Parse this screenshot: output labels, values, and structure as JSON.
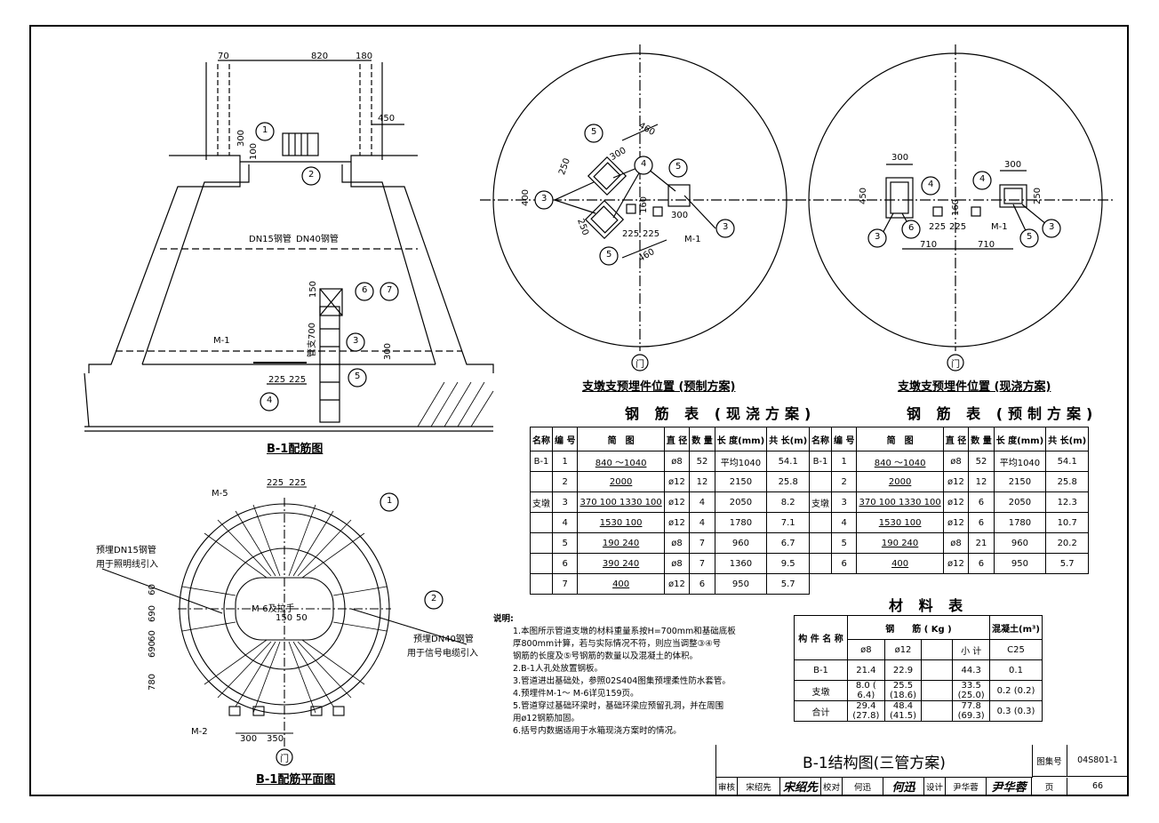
{
  "drawing": {
    "elevation": {
      "title": "B-1配筋图",
      "dims": {
        "d70": "70",
        "d820": "820",
        "d180": "180",
        "d450": "450",
        "d300a": "300",
        "d100": "100",
        "d150": "150",
        "d300b": "300",
        "d225a": "225",
        "d225b": "225"
      },
      "labels": {
        "dn15": "DN15钢管",
        "dn40": "DN40钢管",
        "m1": "M-1",
        "h700": "管支700"
      },
      "bubbles": [
        "1",
        "2",
        "6",
        "7",
        "3",
        "5",
        "4"
      ]
    },
    "plan": {
      "title": "B-1配筋平面图",
      "dims": {
        "d225a": "225",
        "d225b": "225",
        "d60a": "60",
        "d690a": "690",
        "d60b": "60",
        "d690b": "690",
        "d780": "780",
        "d300": "300",
        "d350": "350",
        "d150": "150",
        "d50": "50"
      },
      "labels": {
        "m5": "M-5",
        "m2": "M-2",
        "m6": "M-6及拉手",
        "left1": "预埋DN15钢管",
        "left2": "用于照明线引入",
        "right1": "预埋DN40钢管",
        "right2": "用于信号电缆引入"
      },
      "bubbles": [
        "1",
        "2"
      ],
      "door": "门"
    },
    "circle_left": {
      "title": "支墩支预埋件位置 (预制方案)",
      "dims": {
        "d460a": "460",
        "d300": "300",
        "d250a": "250",
        "d400": "400",
        "d250b": "250",
        "d160": "160",
        "d225a": "225",
        "d225b": "225",
        "d300b": "300",
        "d460b": "460"
      },
      "labels": {
        "m1": "M-1"
      },
      "bubbles": [
        "5",
        "3",
        "4",
        "5",
        "3",
        "5"
      ],
      "door": "门"
    },
    "circle_right": {
      "title": "支墩支预埋件位置 (现浇方案)",
      "dims": {
        "d300a": "300",
        "d450": "450",
        "d300b": "300",
        "d250": "250",
        "d160": "160",
        "d225a": "225",
        "d225b": "225",
        "d710a": "710",
        "d710b": "710"
      },
      "labels": {
        "m1": "M-1"
      },
      "bubbles": [
        "4",
        "3",
        "6",
        "4",
        "5",
        "3"
      ],
      "door": "门"
    }
  },
  "table_cast": {
    "title": "钢 筋 表 (现浇方案)",
    "headers": [
      "名称",
      "编 号",
      "简　图",
      "直 径",
      "数 量",
      "长 度(mm)",
      "共 长(m)"
    ],
    "rows": [
      {
        "name": "B-1",
        "no": "1",
        "sketch": "840 ～1040",
        "dia": "ø8",
        "qty": "52",
        "len": "平均1040",
        "total": "54.1"
      },
      {
        "name": "",
        "no": "2",
        "sketch": "2000",
        "dia": "ø12",
        "qty": "12",
        "len": "2150",
        "total": "25.8"
      },
      {
        "name": "支墩",
        "no": "3",
        "sketch": "370 100 1330 100",
        "dia": "ø12",
        "qty": "4",
        "len": "2050",
        "total": "8.2"
      },
      {
        "name": "",
        "no": "4",
        "sketch": "1530 100",
        "dia": "ø12",
        "qty": "4",
        "len": "1780",
        "total": "7.1"
      },
      {
        "name": "",
        "no": "5",
        "sketch": "190 240",
        "dia": "ø8",
        "qty": "7",
        "len": "960",
        "total": "6.7"
      },
      {
        "name": "",
        "no": "6",
        "sketch": "390 240",
        "dia": "ø8",
        "qty": "7",
        "len": "1360",
        "total": "9.5"
      },
      {
        "name": "",
        "no": "7",
        "sketch": "400",
        "dia": "ø12",
        "qty": "6",
        "len": "950",
        "total": "5.7"
      }
    ]
  },
  "table_pre": {
    "title": "钢 筋 表 (预制方案)",
    "headers": [
      "名称",
      "编 号",
      "简　图",
      "直 径",
      "数 量",
      "长 度(mm)",
      "共 长(m)"
    ],
    "rows": [
      {
        "name": "B-1",
        "no": "1",
        "sketch": "840 ～1040",
        "dia": "ø8",
        "qty": "52",
        "len": "平均1040",
        "total": "54.1"
      },
      {
        "name": "",
        "no": "2",
        "sketch": "2000",
        "dia": "ø12",
        "qty": "12",
        "len": "2150",
        "total": "25.8"
      },
      {
        "name": "支墩",
        "no": "3",
        "sketch": "370 100 1330 100",
        "dia": "ø12",
        "qty": "6",
        "len": "2050",
        "total": "12.3"
      },
      {
        "name": "",
        "no": "4",
        "sketch": "1530 100",
        "dia": "ø12",
        "qty": "6",
        "len": "1780",
        "total": "10.7"
      },
      {
        "name": "",
        "no": "5",
        "sketch": "190 240",
        "dia": "ø8",
        "qty": "21",
        "len": "960",
        "total": "20.2"
      },
      {
        "name": "",
        "no": "6",
        "sketch": "400",
        "dia": "ø12",
        "qty": "6",
        "len": "950",
        "total": "5.7"
      }
    ]
  },
  "material": {
    "title": "材 料 表",
    "h_name": "构 件 名 称",
    "h_steel": "钢　　筋 ( Kg )",
    "h_conc": "混凝土(m³)",
    "sub": [
      "ø8",
      "ø12",
      "",
      "小 计",
      "C25"
    ],
    "rows": [
      {
        "name": "B-1",
        "a": "21.4",
        "b": "22.9",
        "c": "",
        "d": "44.3",
        "e": "0.1"
      },
      {
        "name": "支墩",
        "a": "8.0 ( 6.4)",
        "b": "25.5 (18.6)",
        "c": "",
        "d": "33.5 (25.0)",
        "e": "0.2 (0.2)"
      },
      {
        "name": "合计",
        "a": "29.4 (27.8)",
        "b": "48.4 (41.5)",
        "c": "",
        "d": "77.8 (69.3)",
        "e": "0.3 (0.3)"
      }
    ]
  },
  "notes": {
    "head": "说明:",
    "lines": [
      "1.本图所示管道支墩的材料重量系按H=700mm和基础底板",
      "厚800mm计算，若与实际情况不符，则应当调整③④号",
      "钢筋的长度及⑤号钢筋的数量以及混凝土的体积。",
      "2.B-1人孔处放置钢板。",
      "3.管道进出基础处，参照02S404图集预埋柔性防水套管。",
      "4.预埋件M-1～ M-6详见159页。",
      "5.管道穿过基础环梁时，基础环梁应预留孔洞，并在周围",
      "用ø12钢筋加固。",
      "6.括号内数据适用于水箱现浇方案时的情况。"
    ]
  },
  "titleblock": {
    "title": "B-1结构图(三管方案)",
    "atlas_label": "图集号",
    "atlas_no": "04S801-1",
    "page_label": "页",
    "page_no": "66",
    "review": "审核",
    "reviewer": "宋绍先",
    "check": "校对",
    "checker": "何迅",
    "design": "设计",
    "designer": "尹华蓉"
  }
}
